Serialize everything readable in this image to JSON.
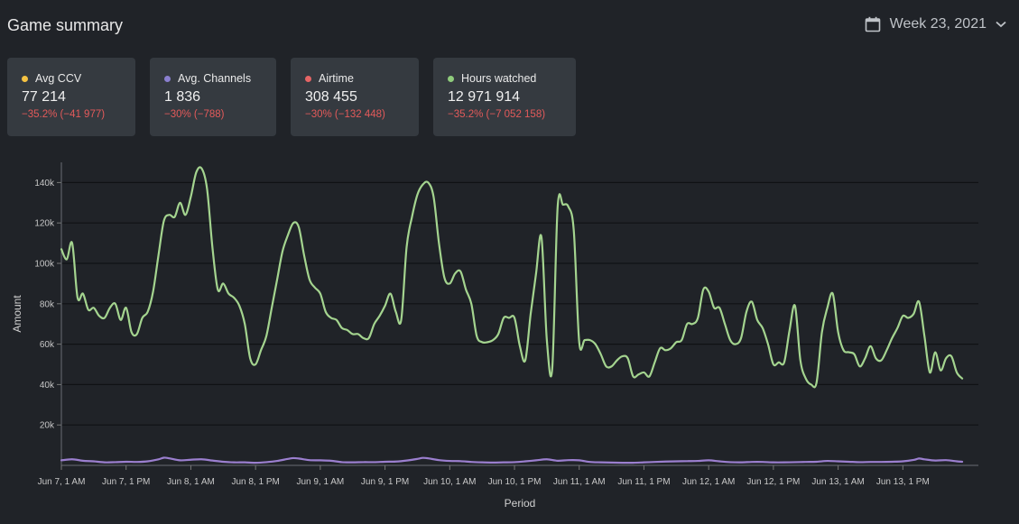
{
  "header": {
    "title": "Game summary",
    "week_label": "Week 23, 2021",
    "calendar_icon": "calendar-icon",
    "chevron_icon": "chevron-down-icon"
  },
  "cards": [
    {
      "label": "Avg CCV",
      "value": "77 214",
      "delta": "−35.2% (−41 977)",
      "color": "#f5c242"
    },
    {
      "label": "Avg. Channels",
      "value": "1 836",
      "delta": "−30% (−788)",
      "color": "#8a7fcf"
    },
    {
      "label": "Airtime",
      "value": "308 455",
      "delta": "−30% (−132 448)",
      "color": "#e56565"
    },
    {
      "label": "Hours watched",
      "value": "12 971 914",
      "delta": "−35.2% (−7 052 158)",
      "color": "#8fcc7c"
    }
  ],
  "chart_data": {
    "type": "line",
    "xlabel": "Period",
    "ylabel": "Amount",
    "ylim": [
      0,
      150000
    ],
    "yticks": [
      20000,
      40000,
      60000,
      80000,
      100000,
      120000,
      140000
    ],
    "ytick_labels": [
      "20k",
      "40k",
      "60k",
      "80k",
      "100k",
      "120k",
      "140k"
    ],
    "xlim": [
      0,
      170
    ],
    "xticks": [
      0,
      12,
      24,
      36,
      48,
      60,
      72,
      84,
      96,
      108,
      120,
      132,
      144,
      156
    ],
    "xtick_labels": [
      "Jun 7, 1 AM",
      "Jun 7, 1 PM",
      "Jun 8, 1 AM",
      "Jun 8, 1 PM",
      "Jun 9, 1 AM",
      "Jun 9, 1 PM",
      "Jun 10, 1 AM",
      "Jun 10, 1 PM",
      "Jun 11, 1 AM",
      "Jun 11, 1 PM",
      "Jun 12, 1 AM",
      "Jun 12, 1 PM",
      "Jun 13, 1 AM",
      "Jun 13, 1 PM"
    ],
    "grid": true,
    "series": [
      {
        "color": "#a4d48f",
        "points": [
          [
            0,
            107000
          ],
          [
            1,
            102000
          ],
          [
            2,
            110000
          ],
          [
            3,
            83000
          ],
          [
            4,
            85000
          ],
          [
            5,
            77000
          ],
          [
            6,
            78000
          ],
          [
            7,
            74000
          ],
          [
            8,
            73000
          ],
          [
            9,
            78000
          ],
          [
            10,
            80000
          ],
          [
            11,
            72000
          ],
          [
            12,
            78000
          ],
          [
            13,
            66000
          ],
          [
            14,
            65000
          ],
          [
            15,
            73000
          ],
          [
            16,
            76000
          ],
          [
            17,
            86000
          ],
          [
            18,
            104000
          ],
          [
            19,
            121000
          ],
          [
            20,
            124000
          ],
          [
            21,
            123000
          ],
          [
            22,
            130000
          ],
          [
            23,
            124000
          ],
          [
            24,
            133000
          ],
          [
            25,
            145000
          ],
          [
            26,
            147000
          ],
          [
            27,
            137000
          ],
          [
            28,
            108000
          ],
          [
            29,
            87000
          ],
          [
            30,
            90000
          ],
          [
            31,
            85000
          ],
          [
            32,
            83000
          ],
          [
            33,
            79000
          ],
          [
            34,
            70000
          ],
          [
            35,
            53000
          ],
          [
            36,
            50000
          ],
          [
            37,
            57000
          ],
          [
            38,
            64000
          ],
          [
            39,
            78000
          ],
          [
            40,
            92000
          ],
          [
            41,
            106000
          ],
          [
            42,
            114000
          ],
          [
            43,
            120000
          ],
          [
            44,
            118000
          ],
          [
            45,
            104000
          ],
          [
            46,
            92000
          ],
          [
            47,
            88000
          ],
          [
            48,
            85000
          ],
          [
            49,
            76000
          ],
          [
            50,
            73000
          ],
          [
            51,
            72000
          ],
          [
            52,
            68000
          ],
          [
            53,
            67000
          ],
          [
            54,
            65000
          ],
          [
            55,
            65000
          ],
          [
            56,
            63000
          ],
          [
            57,
            63000
          ],
          [
            58,
            70000
          ],
          [
            59,
            74000
          ],
          [
            60,
            79000
          ],
          [
            61,
            85000
          ],
          [
            62,
            76000
          ],
          [
            63,
            72000
          ],
          [
            64,
            108000
          ],
          [
            65,
            123000
          ],
          [
            66,
            134000
          ],
          [
            67,
            139000
          ],
          [
            68,
            140000
          ],
          [
            69,
            133000
          ],
          [
            70,
            110000
          ],
          [
            71,
            93000
          ],
          [
            72,
            90000
          ],
          [
            73,
            95000
          ],
          [
            74,
            96000
          ],
          [
            75,
            87000
          ],
          [
            76,
            80000
          ],
          [
            77,
            64000
          ],
          [
            78,
            61000
          ],
          [
            79,
            61000
          ],
          [
            80,
            62000
          ],
          [
            81,
            65000
          ],
          [
            82,
            73000
          ],
          [
            83,
            73000
          ],
          [
            84,
            73000
          ],
          [
            85,
            59000
          ],
          [
            86,
            52000
          ],
          [
            87,
            75000
          ],
          [
            88,
            95000
          ],
          [
            89,
            113000
          ],
          [
            90,
            62000
          ],
          [
            91,
            48000
          ],
          [
            92,
            128000
          ],
          [
            93,
            129000
          ],
          [
            94,
            128000
          ],
          [
            95,
            116000
          ],
          [
            96,
            61000
          ],
          [
            97,
            62000
          ],
          [
            98,
            62000
          ],
          [
            99,
            60000
          ],
          [
            100,
            55000
          ],
          [
            101,
            49000
          ],
          [
            102,
            49000
          ],
          [
            103,
            52000
          ],
          [
            104,
            54000
          ],
          [
            105,
            53000
          ],
          [
            106,
            44000
          ],
          [
            107,
            45000
          ],
          [
            108,
            46000
          ],
          [
            109,
            44000
          ],
          [
            110,
            51000
          ],
          [
            111,
            58000
          ],
          [
            112,
            57000
          ],
          [
            113,
            58000
          ],
          [
            114,
            61000
          ],
          [
            115,
            62000
          ],
          [
            116,
            70000
          ],
          [
            117,
            70000
          ],
          [
            118,
            73000
          ],
          [
            119,
            87000
          ],
          [
            120,
            86000
          ],
          [
            121,
            78000
          ],
          [
            122,
            78000
          ],
          [
            123,
            70000
          ],
          [
            124,
            62000
          ],
          [
            125,
            60000
          ],
          [
            126,
            63000
          ],
          [
            127,
            76000
          ],
          [
            128,
            81000
          ],
          [
            129,
            72000
          ],
          [
            130,
            68000
          ],
          [
            131,
            60000
          ],
          [
            132,
            50000
          ],
          [
            133,
            51000
          ],
          [
            134,
            51000
          ],
          [
            135,
            67000
          ],
          [
            136,
            79000
          ],
          [
            137,
            52000
          ],
          [
            138,
            43000
          ],
          [
            139,
            40000
          ],
          [
            140,
            41000
          ],
          [
            141,
            66000
          ],
          [
            142,
            78000
          ],
          [
            143,
            85000
          ],
          [
            144,
            66000
          ],
          [
            145,
            57000
          ],
          [
            146,
            56000
          ],
          [
            147,
            55000
          ],
          [
            148,
            49000
          ],
          [
            149,
            53000
          ],
          [
            150,
            59000
          ],
          [
            151,
            53000
          ],
          [
            152,
            52000
          ],
          [
            153,
            57000
          ],
          [
            154,
            63000
          ],
          [
            155,
            68000
          ],
          [
            156,
            74000
          ],
          [
            157,
            73000
          ],
          [
            158,
            75000
          ],
          [
            159,
            81000
          ],
          [
            160,
            64000
          ],
          [
            161,
            46000
          ],
          [
            162,
            56000
          ],
          [
            163,
            47000
          ],
          [
            164,
            53000
          ],
          [
            165,
            54000
          ],
          [
            166,
            46000
          ],
          [
            167,
            43000
          ]
        ]
      },
      {
        "color": "#9b7fcf",
        "points": [
          [
            0,
            2500
          ],
          [
            2,
            3000
          ],
          [
            4,
            2300
          ],
          [
            6,
            2000
          ],
          [
            8,
            1500
          ],
          [
            10,
            1600
          ],
          [
            12,
            1800
          ],
          [
            14,
            1700
          ],
          [
            16,
            2000
          ],
          [
            18,
            3000
          ],
          [
            19,
            3800
          ],
          [
            20,
            3500
          ],
          [
            22,
            2500
          ],
          [
            24,
            2800
          ],
          [
            26,
            3000
          ],
          [
            28,
            2400
          ],
          [
            30,
            1800
          ],
          [
            32,
            1500
          ],
          [
            34,
            1500
          ],
          [
            36,
            1300
          ],
          [
            38,
            1600
          ],
          [
            40,
            2200
          ],
          [
            42,
            3200
          ],
          [
            43,
            3600
          ],
          [
            44,
            3400
          ],
          [
            46,
            2600
          ],
          [
            48,
            2500
          ],
          [
            50,
            2300
          ],
          [
            52,
            1600
          ],
          [
            54,
            1500
          ],
          [
            56,
            1600
          ],
          [
            58,
            1600
          ],
          [
            60,
            1800
          ],
          [
            62,
            1900
          ],
          [
            64,
            2400
          ],
          [
            66,
            3200
          ],
          [
            67,
            3700
          ],
          [
            68,
            3500
          ],
          [
            70,
            2600
          ],
          [
            72,
            2200
          ],
          [
            74,
            2100
          ],
          [
            76,
            1700
          ],
          [
            78,
            1500
          ],
          [
            80,
            1400
          ],
          [
            82,
            1500
          ],
          [
            84,
            1600
          ],
          [
            86,
            2000
          ],
          [
            88,
            2500
          ],
          [
            90,
            3000
          ],
          [
            92,
            2300
          ],
          [
            94,
            2600
          ],
          [
            96,
            2500
          ],
          [
            98,
            1700
          ],
          [
            100,
            1500
          ],
          [
            102,
            1400
          ],
          [
            104,
            1300
          ],
          [
            106,
            1300
          ],
          [
            108,
            1500
          ],
          [
            110,
            1700
          ],
          [
            112,
            1900
          ],
          [
            114,
            2000
          ],
          [
            116,
            2100
          ],
          [
            118,
            2200
          ],
          [
            120,
            2500
          ],
          [
            122,
            2000
          ],
          [
            124,
            1600
          ],
          [
            126,
            1500
          ],
          [
            128,
            1700
          ],
          [
            130,
            1700
          ],
          [
            132,
            1500
          ],
          [
            134,
            1500
          ],
          [
            136,
            1600
          ],
          [
            138,
            1700
          ],
          [
            140,
            1800
          ],
          [
            142,
            2200
          ],
          [
            144,
            2000
          ],
          [
            146,
            1800
          ],
          [
            148,
            1600
          ],
          [
            150,
            1700
          ],
          [
            152,
            1700
          ],
          [
            154,
            1800
          ],
          [
            156,
            2000
          ],
          [
            158,
            2700
          ],
          [
            159,
            3400
          ],
          [
            160,
            3000
          ],
          [
            162,
            2400
          ],
          [
            164,
            2600
          ],
          [
            166,
            2000
          ],
          [
            167,
            1800
          ]
        ]
      }
    ]
  }
}
